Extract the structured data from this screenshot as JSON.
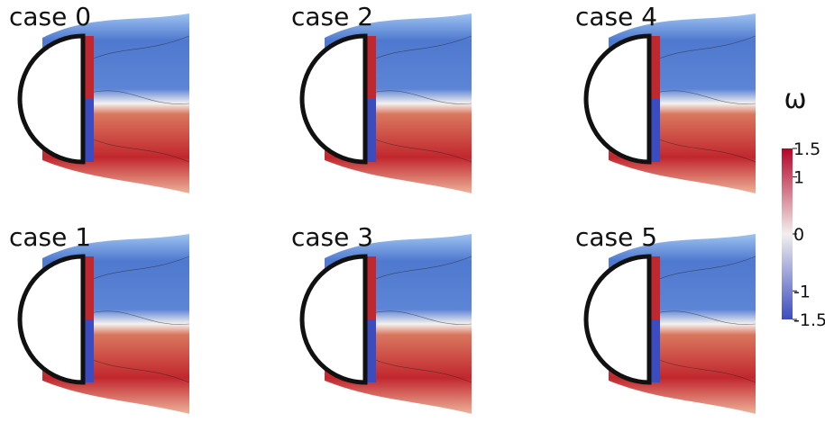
{
  "panels": [
    {
      "label": "case 0"
    },
    {
      "label": "case 2"
    },
    {
      "label": "case 4"
    },
    {
      "label": "case 1"
    },
    {
      "label": "case 3"
    },
    {
      "label": "case 5"
    }
  ],
  "colorbar": {
    "title": "ω",
    "lim": [
      -1.5,
      1.5
    ],
    "ticks": [
      1.5,
      1,
      0,
      -1,
      -1.5
    ]
  }
}
